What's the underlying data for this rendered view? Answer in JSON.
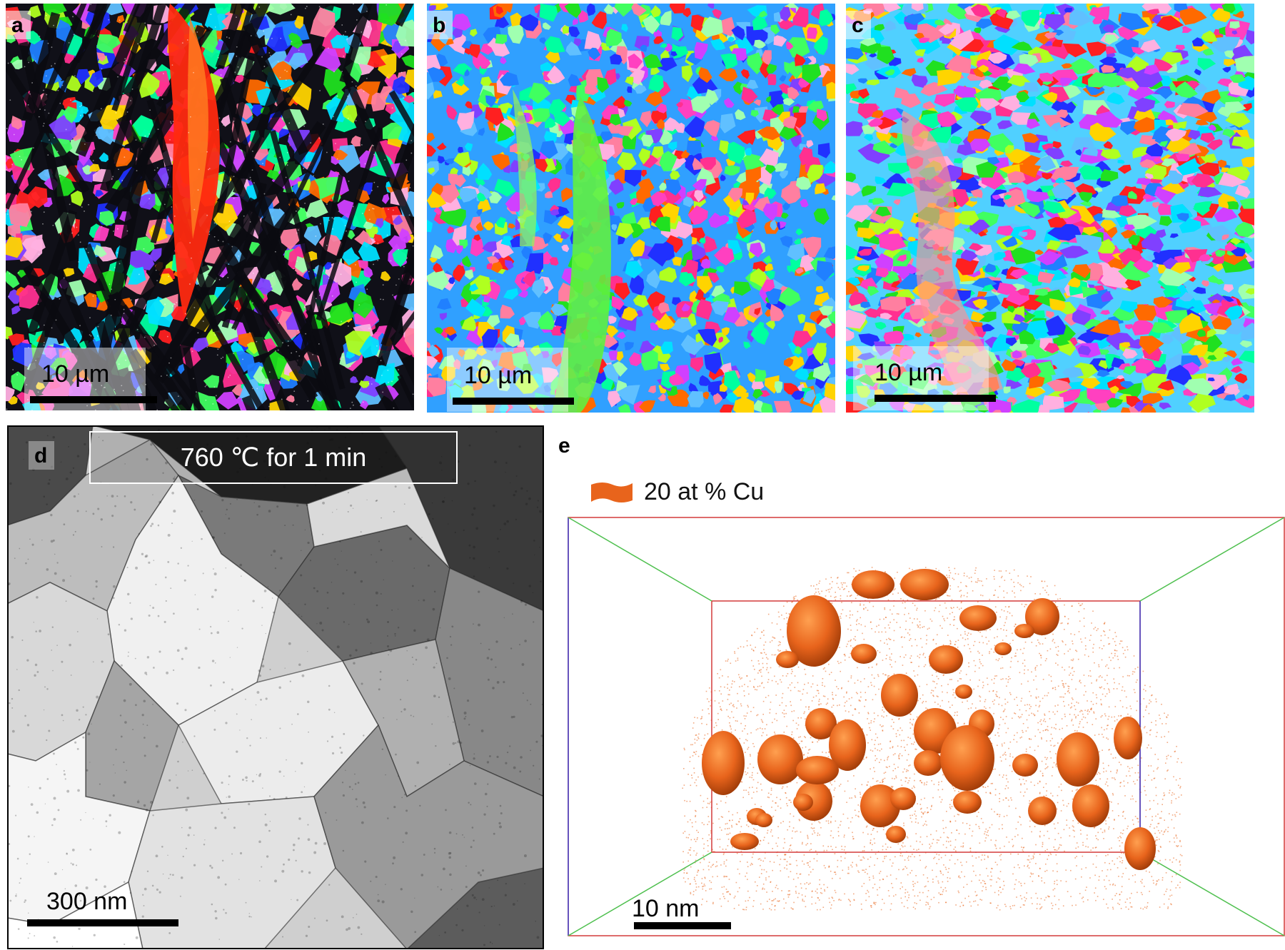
{
  "panels": {
    "a": {
      "label": "a",
      "scale_bar": "10 µm"
    },
    "b": {
      "label": "b",
      "scale_bar": "10 µm"
    },
    "c": {
      "label": "c",
      "scale_bar": "10 µm"
    },
    "d": {
      "label": "d",
      "scale_bar": "300 nm",
      "annotation": "760 ℃ for 1 min"
    },
    "e": {
      "label": "e",
      "scale_bar": "10 nm",
      "legend": "20 at % Cu"
    }
  },
  "colors": {
    "cu_orange": "#e8641c",
    "box_red": "#d43a3a",
    "box_green": "#4fc04f",
    "box_blue": "#3b3bc8"
  }
}
